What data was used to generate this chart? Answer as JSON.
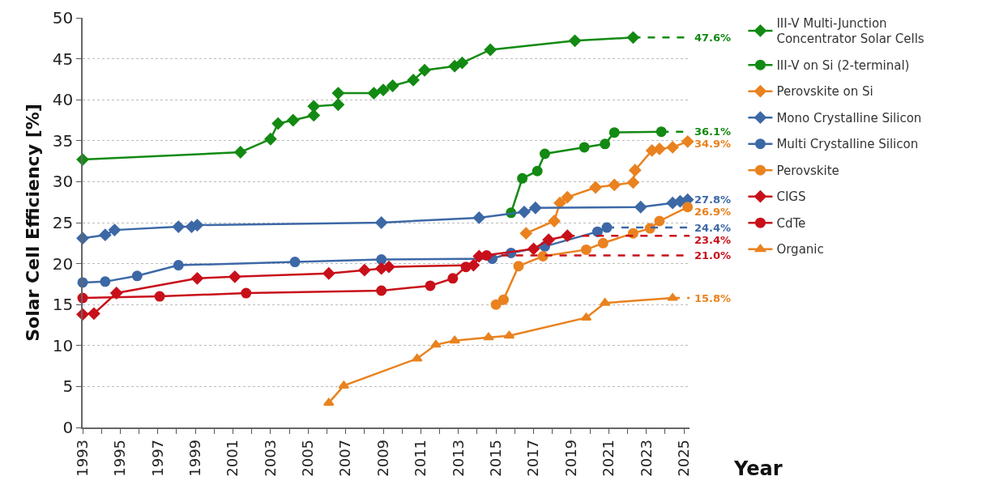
{
  "chart_data": {
    "type": "line",
    "xlabel": "Year",
    "ylabel": "Solar Cell Efficiency [%]",
    "xlim": [
      1993,
      2025.3
    ],
    "xticks": [
      1993,
      {
        "value": 1994,
        "label": null
      },
      1995,
      {
        "value": 1996,
        "label": null
      },
      1997,
      {
        "value": 1998,
        "label": null
      },
      1999,
      {
        "value": 2000,
        "label": null
      },
      2001,
      {
        "value": 2002,
        "label": null
      },
      2003,
      {
        "value": 2004,
        "label": null
      },
      2005,
      {
        "value": 2006,
        "label": null
      },
      2007,
      {
        "value": 2008,
        "label": null
      },
      2009,
      {
        "value": 2010,
        "label": null
      },
      2011,
      {
        "value": 2012,
        "label": null
      },
      2013,
      {
        "value": 2014,
        "label": null
      },
      2015,
      {
        "value": 2016,
        "label": null
      },
      2017,
      {
        "value": 2018,
        "label": null
      },
      2019,
      {
        "value": 2020,
        "label": null
      },
      2021,
      {
        "value": 2022,
        "label": null
      },
      2023,
      {
        "value": 2024,
        "label": null
      },
      2025
    ],
    "ylim": [
      0,
      50
    ],
    "yticks": [
      0,
      5,
      10,
      15,
      20,
      25,
      30,
      35,
      40,
      45,
      50
    ],
    "grid": "y",
    "legend": "top right",
    "line_style": "solid",
    "series": [
      {
        "name": "III-V Multi-Junction Concentrator Solar Cells",
        "color": "#138a13",
        "marker": "diamond",
        "x": [
          1993,
          2001.4,
          2003.0,
          2003.4,
          2004.2,
          2005.3,
          2005.3,
          2006.6,
          2006.6,
          2008.5,
          2009.0,
          2009.5,
          2010.6,
          2011.2,
          2012.8,
          2013.2,
          2014.7,
          2019.2,
          2022.3
        ],
        "values": [
          32.7,
          33.6,
          35.2,
          37.1,
          37.5,
          38.1,
          39.2,
          39.4,
          40.8,
          40.8,
          41.2,
          41.7,
          42.4,
          43.6,
          44.1,
          44.5,
          46.1,
          47.2,
          47.6
        ]
      },
      {
        "name": "III-V on Si (2-terminal)",
        "color": "#138a13",
        "marker": "circle",
        "x": [
          2015.8,
          2016.4,
          2017.2,
          2017.6,
          2019.7,
          2020.8,
          2021.3,
          2023.8
        ],
        "values": [
          26.2,
          30.4,
          31.3,
          33.4,
          34.2,
          34.6,
          36.0,
          36.1
        ]
      },
      {
        "name": "Perovskite on Si",
        "color": "#e9821f",
        "marker": "diamond",
        "x": [
          2016.6,
          2018.1,
          2018.4,
          2018.8,
          2020.3,
          2021.3,
          2022.3,
          2022.4,
          2023.3,
          2023.7,
          2024.4,
          2025.2
        ],
        "values": [
          23.7,
          25.2,
          27.4,
          28.1,
          29.3,
          29.6,
          29.9,
          31.4,
          33.8,
          34.0,
          34.2,
          34.9
        ],
        "value_labels": [
          null,
          null,
          null,
          null,
          null,
          null,
          null,
          null,
          null,
          null,
          null,
          "34.9%"
        ]
      },
      {
        "name": "Mono Crystalline Silicon",
        "color": "#3d68a6",
        "marker": "diamond",
        "x": [
          1993,
          1994.2,
          1994.7,
          1998.1,
          1998.8,
          1999.1,
          2008.9,
          2014.1,
          2016.5,
          2017.1,
          2022.7,
          2024.4,
          2024.8,
          2025.2
        ],
        "values": [
          23.1,
          23.5,
          24.1,
          24.5,
          24.5,
          24.7,
          25.0,
          25.6,
          26.3,
          26.8,
          26.9,
          27.4,
          27.6,
          27.8
        ],
        "value_labels": [
          null,
          null,
          null,
          null,
          null,
          null,
          null,
          null,
          null,
          null,
          null,
          null,
          null,
          "27.8%"
        ]
      },
      {
        "name": "Multi Crystalline Silicon",
        "color": "#3d68a6",
        "marker": "circle",
        "x": [
          1993,
          1994.2,
          1995.9,
          1998.1,
          2004.3,
          2008.9,
          2014.8,
          2015.8,
          2017.6,
          2020.4,
          2020.9
        ],
        "values": [
          17.7,
          17.8,
          18.5,
          19.8,
          20.2,
          20.5,
          20.6,
          21.3,
          22.1,
          23.9,
          24.4
        ]
      },
      {
        "name": "Perovskite",
        "color": "#e9821f",
        "marker": "circle",
        "x": [
          2015.0,
          2015.4,
          2016.2,
          2017.5,
          2019.8,
          2020.7,
          2022.3,
          2023.2,
          2023.7,
          2025.2
        ],
        "values": [
          15.0,
          15.6,
          19.7,
          20.9,
          21.7,
          22.5,
          23.7,
          24.3,
          25.2,
          26.9
        ],
        "value_labels": [
          null,
          null,
          null,
          null,
          null,
          null,
          null,
          null,
          null,
          "26.9%"
        ]
      },
      {
        "name": "CIGS",
        "color": "#c8101a",
        "marker": "diamond",
        "x": [
          1993,
          1993.6,
          1994.8,
          1999.1,
          2001.1,
          2006.1,
          2008.0,
          2008.9,
          2009.3,
          2013.8,
          2014.1,
          2017.0,
          2017.8,
          2018.8
        ],
        "values": [
          13.8,
          13.9,
          16.4,
          18.2,
          18.4,
          18.8,
          19.2,
          19.4,
          19.6,
          19.8,
          20.9,
          21.8,
          22.9,
          23.4
        ]
      },
      {
        "name": "CdTe",
        "color": "#c8101a",
        "marker": "circle",
        "x": [
          1993,
          1997.1,
          2001.7,
          2008.9,
          2011.5,
          2012.7,
          2013.4,
          2014.5
        ],
        "values": [
          15.8,
          16.0,
          16.4,
          16.7,
          17.3,
          18.2,
          19.6,
          21.0
        ]
      },
      {
        "name": "Organic",
        "color": "#e9821f",
        "marker": "triangle",
        "x": [
          2006.1,
          2006.9,
          2010.8,
          2011.8,
          2012.8,
          2014.6,
          2015.7,
          2019.8,
          2020.8,
          2024.4
        ],
        "values": [
          3.0,
          5.1,
          8.4,
          10.1,
          10.6,
          11.0,
          11.2,
          13.4,
          15.2,
          15.8
        ]
      },
      {
        "color": "#138a13",
        "marker": "none",
        "line_style": "dashed",
        "x": [
          2022.3,
          2025.3
        ],
        "values": [
          47.6,
          47.6
        ],
        "value_labels": [
          null,
          "47.6%"
        ]
      },
      {
        "color": "#138a13",
        "marker": "none",
        "line_style": "dashed",
        "x": [
          2023.8,
          2025.3
        ],
        "values": [
          36.1,
          36.1
        ],
        "value_labels": [
          null,
          "36.1%"
        ]
      },
      {
        "color": "#3d68a6",
        "marker": "none",
        "line_style": "dashed",
        "x": [
          2020.9,
          2025.3
        ],
        "values": [
          24.4,
          24.4
        ],
        "value_labels": [
          null,
          "24.4%"
        ]
      },
      {
        "color": "#c8101a",
        "marker": "none",
        "line_style": "dashed",
        "x": [
          2018.8,
          2025.3
        ],
        "values": [
          23.4,
          23.4
        ],
        "value_labels": [
          null,
          "23.4%"
        ]
      },
      {
        "color": "#c8101a",
        "marker": "none",
        "line_style": "dashed",
        "x": [
          2014.5,
          2025.3
        ],
        "values": [
          21.0,
          21.0
        ],
        "value_labels": [
          null,
          "21.0%"
        ]
      },
      {
        "color": "#e9821f",
        "marker": "none",
        "line_style": "dashed",
        "x": [
          2024.4,
          2025.3
        ],
        "values": [
          15.8,
          15.8
        ],
        "value_labels": [
          null,
          "15.8%"
        ]
      }
    ]
  }
}
